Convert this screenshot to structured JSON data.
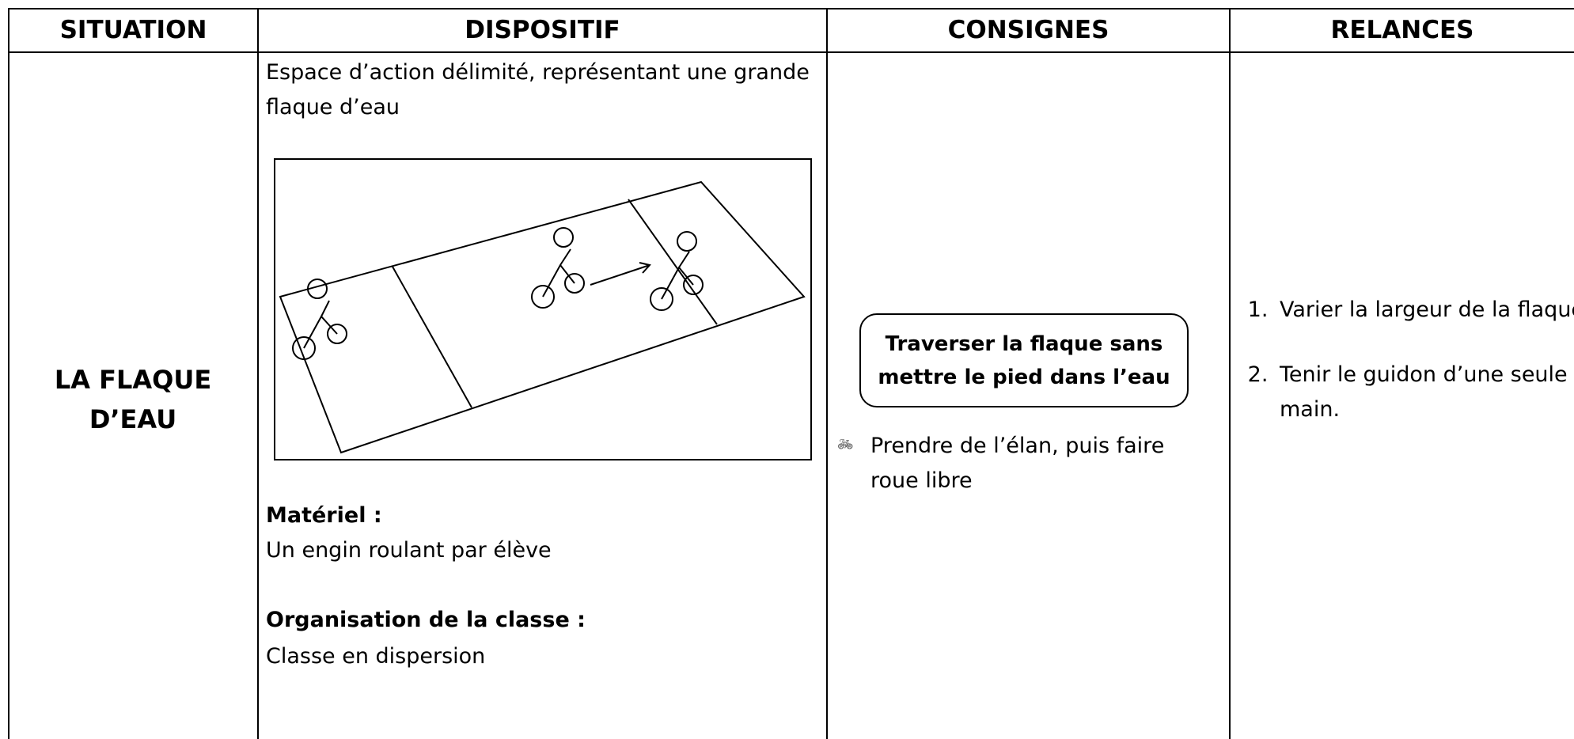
{
  "table": {
    "headers": [
      "SITUATION",
      "DISPOSITIF",
      "CONSIGNES",
      "RELANCES"
    ],
    "situation": "LA FLAQUE D’EAU",
    "dispositif": {
      "description": "Espace d’action délimité, représentant une grande flaque d’eau",
      "materiel_label": "Matériel :",
      "materiel": "Un engin roulant par élève",
      "organisation_label": "Organisation de la classe :",
      "organisation": "Classe en dispersion"
    },
    "consignes": {
      "main": "Traverser la flaque sans mettre le pied dans l’eau",
      "bullet": "Prendre de l’élan, puis faire roue libre"
    },
    "relances": [
      "Varier la largeur de la flaque.",
      "Tenir le guidon d’une seule main."
    ]
  }
}
